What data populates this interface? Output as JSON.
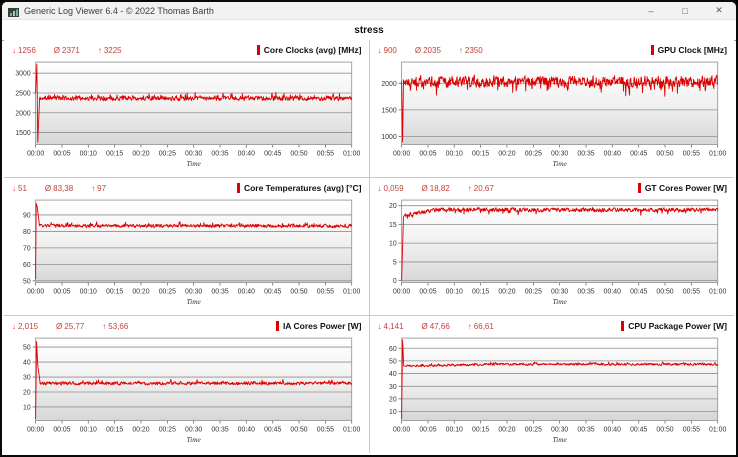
{
  "window": {
    "title": "Generic Log Viewer 6.4 - © 2022 Thomas Barth",
    "controls": {
      "minimize": "–",
      "maximize": "□",
      "close": "✕"
    }
  },
  "page_title": "stress",
  "symbols": {
    "min": "↓",
    "avg": "Ø",
    "max": "↑"
  },
  "colors": {
    "series": "#dd0000",
    "stats_text": "#c3423c",
    "marker": "#dd0000"
  },
  "chart_data": [
    {
      "type": "line",
      "title": "Core Clocks (avg) [MHz]",
      "stats": {
        "min": "1256",
        "avg": "2371",
        "max": "3225"
      },
      "xlabel": "Time",
      "xticks": [
        "00:00",
        "00:05",
        "00:10",
        "00:15",
        "00:20",
        "00:25",
        "00:30",
        "00:35",
        "00:40",
        "00:45",
        "00:50",
        "00:55",
        "01:00"
      ],
      "yticks": [
        1500,
        2000,
        2500,
        3000
      ],
      "ylim": [
        1200,
        3280
      ],
      "x_range_minutes": [
        0,
        60
      ],
      "grid": true,
      "legend_position": "top-right",
      "line_color": "#dd0000",
      "series_params": {
        "seed": 11,
        "intro": [
          [
            0,
            2500
          ],
          [
            0.004,
            3225
          ],
          [
            0.007,
            1256
          ],
          [
            0.012,
            2250
          ]
        ],
        "base": 2360,
        "amp": 70,
        "spike_p": 0.12,
        "spike_amp": 160,
        "clamp": [
          2150,
          2650
        ]
      }
    },
    {
      "type": "line",
      "title": "GPU Clock [MHz]",
      "stats": {
        "min": "900",
        "avg": "2035",
        "max": "2350"
      },
      "xlabel": "Time",
      "xticks": [
        "00:00",
        "00:05",
        "00:10",
        "00:15",
        "00:20",
        "00:25",
        "00:30",
        "00:35",
        "00:40",
        "00:45",
        "00:50",
        "00:55",
        "01:00"
      ],
      "yticks": [
        1000,
        1500,
        2000
      ],
      "ylim": [
        850,
        2400
      ],
      "x_range_minutes": [
        0,
        60
      ],
      "grid": true,
      "legend_position": "top-right",
      "line_color": "#dd0000",
      "series_params": {
        "seed": 22,
        "intro": [
          [
            0,
            2050
          ],
          [
            0.003,
            900
          ],
          [
            0.006,
            2000
          ]
        ],
        "base": 2035,
        "amp": 130,
        "spike_p": 0.1,
        "spike_amp": -280,
        "clamp": [
          1680,
          2350
        ]
      }
    },
    {
      "type": "line",
      "title": "Core Temperatures (avg) [°C]",
      "stats": {
        "min": "51",
        "avg": "83,38",
        "max": "97"
      },
      "xlabel": "Time",
      "xticks": [
        "00:00",
        "00:05",
        "00:10",
        "00:15",
        "00:20",
        "00:25",
        "00:30",
        "00:35",
        "00:40",
        "00:45",
        "00:50",
        "00:55",
        "01:00"
      ],
      "yticks": [
        50,
        60,
        70,
        80,
        90
      ],
      "ylim": [
        49,
        99
      ],
      "x_range_minutes": [
        0,
        60
      ],
      "grid": true,
      "legend_position": "top-right",
      "line_color": "#dd0000",
      "series_params": {
        "seed": 33,
        "intro": [
          [
            0,
            51
          ],
          [
            0.002,
            97
          ],
          [
            0.005,
            95
          ],
          [
            0.012,
            83.5
          ]
        ],
        "base": 83.3,
        "amp": 1.3,
        "spike_p": 0.06,
        "spike_amp": 2.5,
        "clamp": [
          80.5,
          86.5
        ]
      }
    },
    {
      "type": "line",
      "title": "GT Cores Power [W]",
      "stats": {
        "min": "0,059",
        "avg": "18,82",
        "max": "20,67"
      },
      "xlabel": "Time",
      "xticks": [
        "00:00",
        "00:05",
        "00:10",
        "00:15",
        "00:20",
        "00:25",
        "00:30",
        "00:35",
        "00:40",
        "00:45",
        "00:50",
        "00:55",
        "01:00"
      ],
      "yticks": [
        0,
        5,
        10,
        15,
        20
      ],
      "ylim": [
        -0.5,
        21.5
      ],
      "x_range_minutes": [
        0,
        60
      ],
      "grid": true,
      "legend_position": "top-right",
      "line_color": "#dd0000",
      "series_params": {
        "seed": 44,
        "intro": [
          [
            0,
            0.059
          ],
          [
            0.006,
            17
          ],
          [
            0.012,
            17.8
          ]
        ],
        "base": 18.9,
        "amp": 0.7,
        "spike_p": 0.05,
        "spike_amp": -1.5,
        "clamp": [
          16.2,
          20.67
        ],
        "ramp": [
          0.1,
          17.4
        ]
      }
    },
    {
      "type": "line",
      "title": "IA Cores Power [W]",
      "stats": {
        "min": "2,015",
        "avg": "25,77",
        "max": "53,66"
      },
      "xlabel": "Time",
      "xticks": [
        "00:00",
        "00:05",
        "00:10",
        "00:15",
        "00:20",
        "00:25",
        "00:30",
        "00:35",
        "00:40",
        "00:45",
        "00:50",
        "00:55",
        "01:00"
      ],
      "yticks": [
        10,
        20,
        30,
        40,
        50
      ],
      "ylim": [
        1,
        56
      ],
      "x_range_minutes": [
        0,
        60
      ],
      "grid": true,
      "legend_position": "top-right",
      "line_color": "#dd0000",
      "series_params": {
        "seed": 55,
        "intro": [
          [
            0,
            2.015
          ],
          [
            0.003,
            53.66
          ],
          [
            0.007,
            38
          ],
          [
            0.014,
            26.5
          ]
        ],
        "base": 25.8,
        "amp": 1.3,
        "spike_p": 0.06,
        "spike_amp": 2.5,
        "clamp": [
          23,
          30.5
        ]
      }
    },
    {
      "type": "line",
      "title": "CPU Package Power [W]",
      "stats": {
        "min": "4,141",
        "avg": "47,66",
        "max": "66,61"
      },
      "xlabel": "Time",
      "xticks": [
        "00:00",
        "00:05",
        "00:10",
        "00:15",
        "00:20",
        "00:25",
        "00:30",
        "00:35",
        "00:40",
        "00:45",
        "00:50",
        "00:55",
        "01:00"
      ],
      "yticks": [
        10,
        20,
        30,
        40,
        50,
        60
      ],
      "ylim": [
        3,
        68
      ],
      "x_range_minutes": [
        0,
        60
      ],
      "grid": true,
      "legend_position": "top-right",
      "line_color": "#dd0000",
      "series_params": {
        "seed": 66,
        "intro": [
          [
            0,
            4.141
          ],
          [
            0.003,
            66.61
          ],
          [
            0.007,
            46
          ],
          [
            0.015,
            45.8
          ]
        ],
        "base": 47.3,
        "amp": 1.1,
        "spike_p": 0.08,
        "spike_amp": 1.8,
        "clamp": [
          44.5,
          50.5
        ],
        "ramp": [
          0.3,
          46
        ]
      }
    }
  ]
}
